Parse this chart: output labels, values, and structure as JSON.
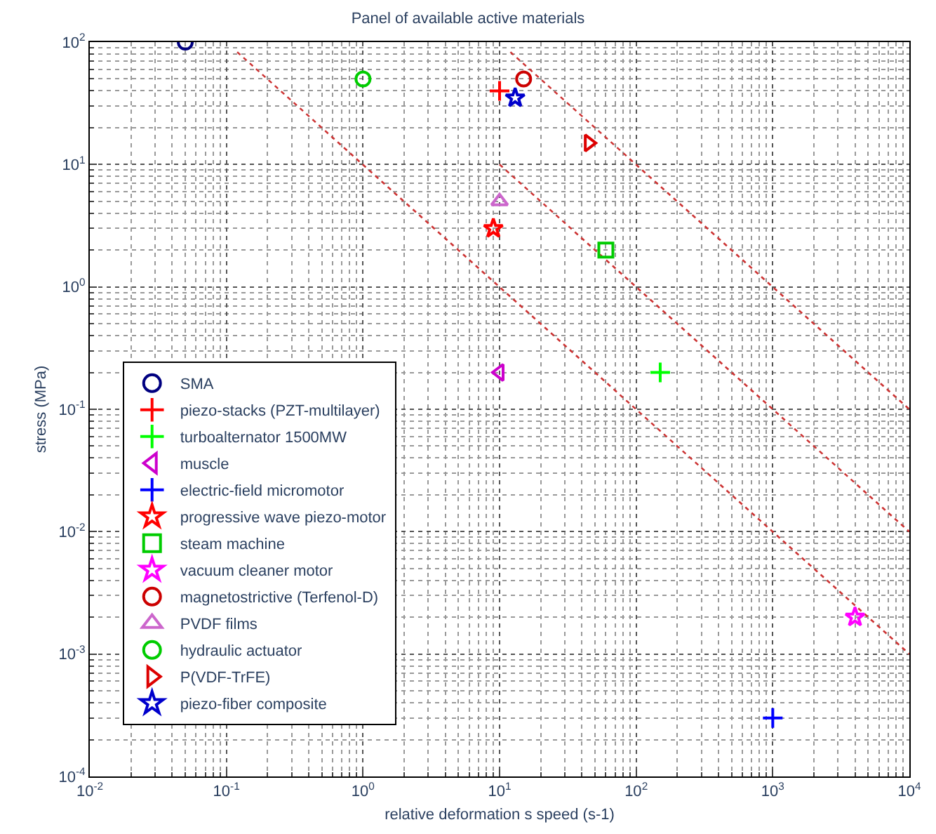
{
  "chart_data": {
    "type": "scatter",
    "title": "Panel of available active materials",
    "xlabel": "relative deformation s speed (s-1)",
    "ylabel": "stress (MPa)",
    "log": "xy",
    "grid": true,
    "legend": "bottom left",
    "xlim": [
      0.01,
      10000
    ],
    "ylim": [
      0.0001,
      100
    ],
    "xticks": [
      {
        "value": 0.01,
        "label": "10$^{-2}$"
      },
      {
        "value": 0.1,
        "label": "10$^{-1}$"
      },
      {
        "value": 1,
        "label": "10$^{0}$"
      },
      {
        "value": 10,
        "label": "10$^{1}$"
      },
      {
        "value": 100,
        "label": "10$^{2}$"
      },
      {
        "value": 1000,
        "label": "10$^{3}$"
      },
      {
        "value": 10000,
        "label": "10$^{4}$"
      }
    ],
    "yticks": [
      {
        "value": 0.0001,
        "label": "10$^{-4}$"
      },
      {
        "value": 0.001,
        "label": "10$^{-3}$"
      },
      {
        "value": 0.01,
        "label": "10$^{-2}$"
      },
      {
        "value": 0.1,
        "label": "10$^{-1}$"
      },
      {
        "value": 1,
        "label": "10$^{0}$"
      },
      {
        "value": 10,
        "label": "10$^{1}$"
      },
      {
        "value": 100,
        "label": "10$^{2}$"
      }
    ],
    "series": [
      {
        "type": "line",
        "color": "#cc3333",
        "line_style": "dotted",
        "marker": "none",
        "x": [
          0.12,
          10000
        ],
        "values": [
          83,
          0.001
        ]
      },
      {
        "type": "line",
        "color": "#cc3333",
        "line_style": "dotted",
        "marker": "none",
        "x": [
          10,
          10000
        ],
        "values": [
          10,
          0.01
        ]
      },
      {
        "type": "line",
        "color": "#cc3333",
        "line_style": "dotted",
        "marker": "none",
        "x": [
          12,
          10000
        ],
        "values": [
          83,
          0.1
        ]
      },
      {
        "name": "SMA",
        "color": "#000080",
        "marker": "circle",
        "x": [
          0.05
        ],
        "values": [
          100
        ]
      },
      {
        "name": "piezo-stacks (PZT-multilayer)",
        "color": "#ff0000",
        "marker": "cross",
        "x": [
          10
        ],
        "values": [
          40
        ]
      },
      {
        "name": "turboalternator 1500MW",
        "color": "#00ff00",
        "marker": "cross",
        "x": [
          150
        ],
        "values": [
          0.2
        ]
      },
      {
        "name": "muscle",
        "color": "#cc00cc",
        "marker": "triangle-left",
        "x": [
          10
        ],
        "values": [
          0.2
        ]
      },
      {
        "name": "electric-field micromotor",
        "color": "#0000ff",
        "marker": "cross",
        "x": [
          1000
        ],
        "values": [
          0.0003
        ]
      },
      {
        "name": "progressive wave piezo-motor",
        "color": "#ff0000",
        "marker": "star",
        "x": [
          9
        ],
        "values": [
          3
        ]
      },
      {
        "name": "steam machine",
        "color": "#00cc00",
        "marker": "square",
        "x": [
          60
        ],
        "values": [
          2
        ]
      },
      {
        "name": "vacuum cleaner motor",
        "color": "#ff00ff",
        "marker": "star",
        "x": [
          4000
        ],
        "values": [
          0.002
        ]
      },
      {
        "name": "magnetostrictive (Terfenol-D)",
        "color": "#cc0000",
        "marker": "circle",
        "x": [
          15
        ],
        "values": [
          50
        ]
      },
      {
        "name": "PVDF films",
        "color": "#cc66cc",
        "marker": "triangle",
        "x": [
          10
        ],
        "values": [
          5
        ]
      },
      {
        "name": "hydraulic actuator",
        "color": "#00cc00",
        "marker": "circle",
        "x": [
          1
        ],
        "values": [
          50
        ]
      },
      {
        "name": "P(VDF-TrFE)",
        "color": "#dd0000",
        "marker": "triangle-right",
        "x": [
          45
        ],
        "values": [
          15
        ]
      },
      {
        "name": "piezo-fiber composite",
        "color": "#0000cc",
        "marker": "star",
        "x": [
          13
        ],
        "values": [
          35
        ]
      }
    ]
  }
}
